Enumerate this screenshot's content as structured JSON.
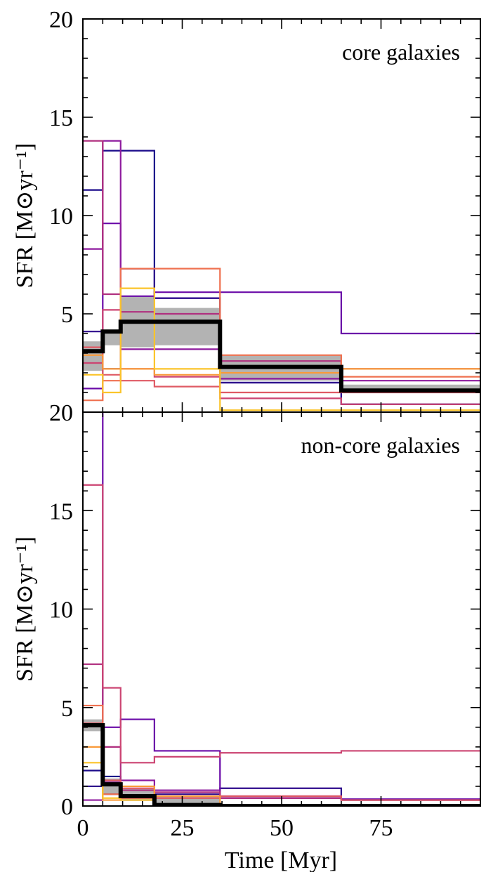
{
  "x_axis": {
    "label": "Time [Myr]",
    "range": [
      0,
      100
    ],
    "ticks": [
      0,
      25,
      50,
      75
    ],
    "tick_labels": [
      "0",
      "25",
      "50",
      "75"
    ]
  },
  "bins": [
    0,
    5,
    9.5,
    18,
    34.5,
    65,
    100
  ],
  "chart_data": [
    {
      "type": "line",
      "title": "core galaxies",
      "ylabel": "SFR [M⊙yr⁻¹]",
      "xlabel": "",
      "xlim": [
        0,
        100
      ],
      "ylim": [
        0,
        20
      ],
      "yticks": [
        0,
        5,
        10,
        15,
        20
      ],
      "ytick_labels": [
        "",
        "5",
        "10",
        "15",
        "20"
      ],
      "band": {
        "lower": [
          2.1,
          3.4,
          3.3,
          3.4,
          1.6,
          1.0
        ],
        "upper": [
          3.6,
          4.2,
          5.9,
          5.3,
          2.9,
          1.4
        ],
        "color": "#b3b3b3"
      },
      "median": {
        "values": [
          3.1,
          4.1,
          4.6,
          4.6,
          2.3,
          1.1
        ],
        "color": "#000000"
      },
      "series": [
        {
          "values": [
            11.3,
            13.3,
            13.3,
            5.8,
            1.5,
            0.4
          ],
          "color": "#1a0a8a"
        },
        {
          "values": [
            4.1,
            2.2,
            7.3,
            5.8,
            1.5,
            0.4
          ],
          "color": "#2e0a8c"
        },
        {
          "values": [
            1.2,
            9.6,
            5.9,
            6.1,
            6.1,
            4.0
          ],
          "color": "#6a0aa8"
        },
        {
          "values": [
            8.3,
            13.8,
            3.2,
            3.2,
            1.7,
            1.6
          ],
          "color": "#8e1a9e"
        },
        {
          "values": [
            13.8,
            6.0,
            5.1,
            5.0,
            2.6,
            2.2
          ],
          "color": "#b0307f"
        },
        {
          "values": [
            2.5,
            5.2,
            2.2,
            1.8,
            0.7,
            0.4
          ],
          "color": "#cc4472"
        },
        {
          "values": [
            3.3,
            1.9,
            1.6,
            1.3,
            1.0,
            1.0
          ],
          "color": "#df5a64"
        },
        {
          "values": [
            0.6,
            1.6,
            7.3,
            7.3,
            2.9,
            1.8
          ],
          "color": "#ef7150"
        },
        {
          "values": [
            2.9,
            2.2,
            2.2,
            1.9,
            2.0,
            2.2
          ],
          "color": "#f99a3a"
        },
        {
          "values": [
            1.9,
            1.0,
            6.3,
            2.2,
            0.1,
            0.1
          ],
          "color": "#fbc42a"
        }
      ]
    },
    {
      "type": "line",
      "title": "non-core galaxies",
      "ylabel": "SFR [M⊙yr⁻¹]",
      "xlabel": "Time [Myr]",
      "xlim": [
        0,
        100
      ],
      "ylim": [
        0,
        20
      ],
      "yticks": [
        0,
        5,
        10,
        15,
        20
      ],
      "ytick_labels": [
        "0",
        "5",
        "10",
        "15",
        "20"
      ],
      "band": {
        "lower": [
          3.8,
          0.6,
          0.3,
          0.05,
          0.0,
          0.0
        ],
        "upper": [
          4.4,
          1.4,
          0.9,
          0.5,
          0.05,
          0.05
        ],
        "color": "#b3b3b3"
      },
      "median": {
        "values": [
          4.1,
          1.1,
          0.5,
          0.05,
          0.0,
          0.0
        ],
        "color": "#000000"
      },
      "series": [
        {
          "values": [
            1.8,
            1.5,
            0.3,
            0.05,
            0.0,
            0.0
          ],
          "color": "#1a0a8a"
        },
        {
          "values": [
            1.0,
            0.6,
            0.5,
            0.6,
            0.9,
            0.3
          ],
          "color": "#2e0a8c"
        },
        {
          "values": [
            20.0,
            4.0,
            4.4,
            2.8,
            0.4,
            0.35
          ],
          "color": "#6a0aa8"
        },
        {
          "values": [
            0.3,
            1.2,
            1.3,
            0.8,
            0.5,
            0.3
          ],
          "color": "#8e1a9e"
        },
        {
          "values": [
            7.2,
            3.0,
            0.8,
            0.7,
            0.4,
            0.3
          ],
          "color": "#b0307f"
        },
        {
          "values": [
            16.3,
            6.0,
            2.2,
            2.5,
            2.7,
            2.8
          ],
          "color": "#cc4472"
        },
        {
          "values": [
            4.2,
            1.3,
            0.9,
            0.4,
            0.5,
            0.3
          ],
          "color": "#df5a64"
        },
        {
          "values": [
            5.1,
            0.6,
            0.4,
            0.1,
            0.0,
            0.0
          ],
          "color": "#ef7150"
        },
        {
          "values": [
            3.0,
            0.3,
            1.0,
            0.5,
            0.0,
            0.0
          ],
          "color": "#f99a3a"
        },
        {
          "values": [
            2.2,
            0.4,
            0.3,
            0.05,
            0.0,
            0.0
          ],
          "color": "#fbc42a"
        }
      ]
    }
  ]
}
